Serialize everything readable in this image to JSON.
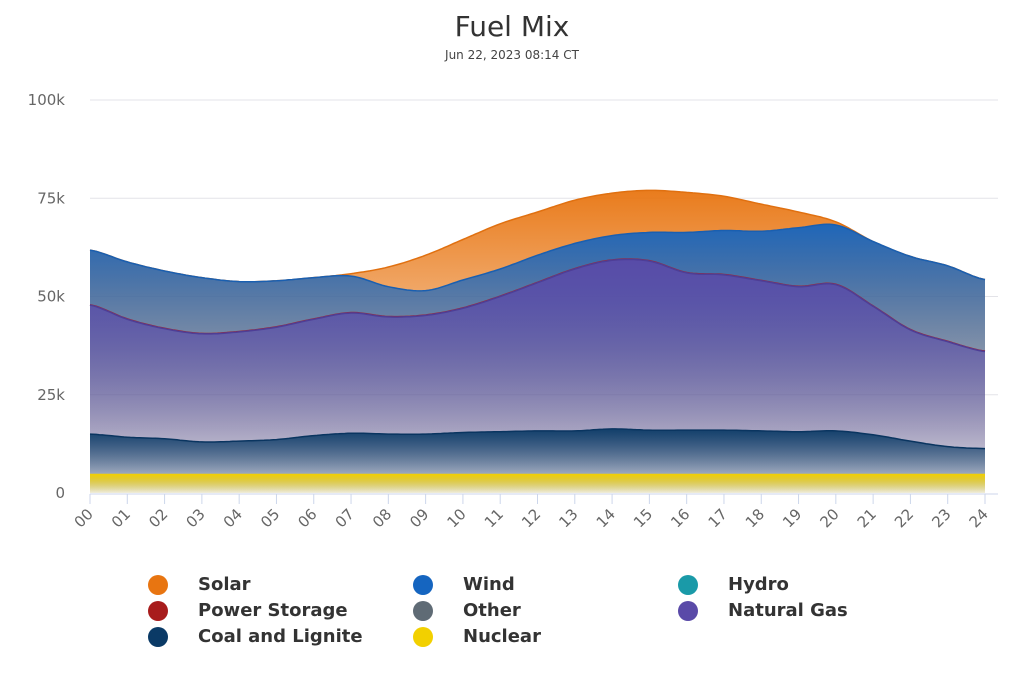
{
  "chart_data": {
    "type": "area",
    "stacked": true,
    "title": "Fuel Mix",
    "subtitle": "Jun 22, 2023 08:14 CT",
    "xlabel": "",
    "ylabel": "",
    "ylim": [
      0,
      100000
    ],
    "yticks": [
      {
        "value": 0,
        "label": "0"
      },
      {
        "value": 25000,
        "label": "25k"
      },
      {
        "value": 50000,
        "label": "50k"
      },
      {
        "value": 75000,
        "label": "75k"
      },
      {
        "value": 100000,
        "label": "100k"
      }
    ],
    "xlim": [
      0,
      24
    ],
    "x_tick_labels": [
      "00",
      "01",
      "02",
      "03",
      "04",
      "05",
      "06",
      "07",
      "08",
      "09",
      "10",
      "11",
      "12",
      "13",
      "14",
      "15",
      "16",
      "17",
      "18",
      "19",
      "20",
      "21",
      "22",
      "23",
      "24"
    ],
    "grid": true,
    "legend_position": "bottom",
    "x": [
      0,
      1,
      2,
      3,
      4,
      5,
      6,
      7,
      8,
      9,
      10,
      11,
      12,
      13,
      14,
      15,
      16,
      17,
      18,
      19,
      20,
      21,
      22,
      23,
      24
    ],
    "cumulative_tops_note": "values are stacked cumulative tops in MW",
    "series": [
      {
        "name": "Nuclear",
        "color": "#f2d000",
        "values": [
          4900,
          4900,
          4900,
          4900,
          4900,
          4900,
          4900,
          4900,
          4900,
          4900,
          4900,
          4900,
          4900,
          4900,
          4900,
          4900,
          4900,
          4900,
          4900,
          4900,
          4900,
          4900,
          4900,
          4900,
          4900
        ]
      },
      {
        "name": "Coal and Lignite",
        "color": "#0a3a66",
        "values": [
          15000,
          14200,
          13800,
          13000,
          13200,
          13600,
          14600,
          15200,
          15000,
          15000,
          15400,
          15600,
          15800,
          15800,
          16300,
          16000,
          16000,
          16000,
          15800,
          15600,
          15800,
          14800,
          13200,
          11800,
          11300
        ]
      },
      {
        "name": "Natural Gas",
        "color": "#5a4aa8",
        "values": [
          47800,
          44200,
          41800,
          40500,
          41000,
          42200,
          44200,
          45800,
          44800,
          45200,
          47000,
          50000,
          53500,
          57000,
          59200,
          59000,
          56000,
          55500,
          54000,
          52500,
          53000,
          47500,
          41500,
          38500,
          36000
        ]
      },
      {
        "name": "Power Storage",
        "color": "#a81c1c",
        "values": [
          47900,
          44300,
          41900,
          40600,
          41100,
          42300,
          44300,
          45900,
          44900,
          45300,
          47100,
          50100,
          53600,
          57100,
          59300,
          59100,
          56100,
          55600,
          54100,
          52600,
          53100,
          47600,
          41600,
          38600,
          36100
        ]
      },
      {
        "name": "Wind",
        "color": "#1565c0",
        "values": [
          61800,
          58800,
          56500,
          54800,
          53800,
          54000,
          54800,
          55200,
          52500,
          51500,
          54200,
          57000,
          60500,
          63500,
          65500,
          66300,
          66300,
          66800,
          66600,
          67500,
          68200,
          64000,
          60200,
          57800,
          54300
        ]
      },
      {
        "name": "Solar",
        "color": "#e87511",
        "values": [
          61800,
          58800,
          56500,
          54800,
          53800,
          54000,
          54800,
          55800,
          57500,
          60500,
          64500,
          68500,
          71500,
          74500,
          76300,
          77000,
          76500,
          75500,
          73500,
          71500,
          69000,
          64000,
          60200,
          57800,
          54300
        ]
      },
      {
        "name": "Hydro",
        "color": "#1a9aa8",
        "values": null
      },
      {
        "name": "Other",
        "color": "#5f6b75",
        "values": null
      }
    ]
  },
  "legend": [
    {
      "label": "Solar",
      "color": "#e87511"
    },
    {
      "label": "Wind",
      "color": "#1565c0"
    },
    {
      "label": "Hydro",
      "color": "#1a9aa8"
    },
    {
      "label": "Power Storage",
      "color": "#a81c1c"
    },
    {
      "label": "Other",
      "color": "#5f6b75"
    },
    {
      "label": "Natural Gas",
      "color": "#5a4aa8"
    },
    {
      "label": "Coal and Lignite",
      "color": "#0a3a66"
    },
    {
      "label": "Nuclear",
      "color": "#f2d000"
    }
  ]
}
